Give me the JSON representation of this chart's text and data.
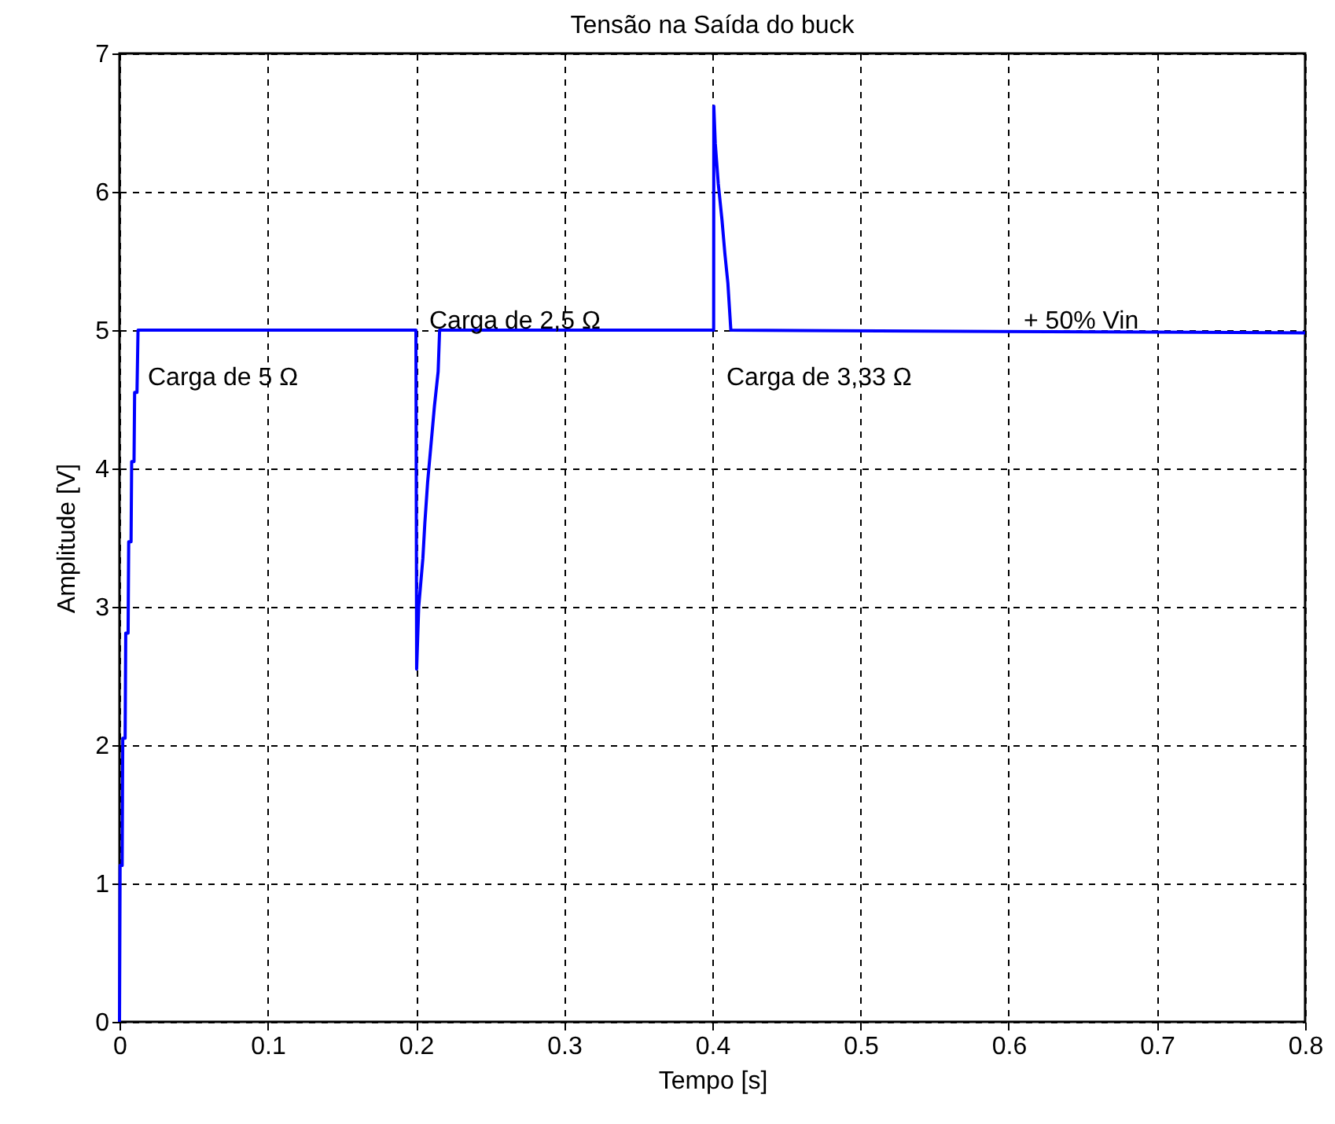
{
  "chart_data": {
    "type": "line",
    "title": "Tensão na Saída do buck",
    "xlabel": "Tempo [s]",
    "ylabel": "Amplitude [V]",
    "x": [
      0,
      0.0004,
      0.0018,
      0.0022,
      0.0038,
      0.0042,
      0.0058,
      0.0062,
      0.0078,
      0.0082,
      0.0098,
      0.0102,
      0.0118,
      0.0125,
      0.2,
      0.2005,
      0.2019,
      0.2047,
      0.206,
      0.2079,
      0.21,
      0.2125,
      0.215,
      0.216,
      0.4009,
      0.401,
      0.402,
      0.404,
      0.4065,
      0.4085,
      0.4105,
      0.4125,
      0.8
    ],
    "series": [
      {
        "color": "#0000ff",
        "values": [
          0,
          1.13,
          1.13,
          2.05,
          2.05,
          2.81,
          2.81,
          3.47,
          3.47,
          4.05,
          4.05,
          4.55,
          4.55,
          5.0,
          5.0,
          2.55,
          3.0,
          3.35,
          3.6,
          3.9,
          4.15,
          4.45,
          4.7,
          5.0,
          5.0,
          6.62,
          6.35,
          6.06,
          5.8,
          5.55,
          5.34,
          5.0,
          4.98
        ]
      }
    ],
    "xlim": [
      0,
      0.8
    ],
    "xticks": [
      0,
      0.1,
      0.2,
      0.3,
      0.4,
      0.5,
      0.6,
      0.7,
      0.8
    ],
    "ylim": [
      0,
      7
    ],
    "yticks": [
      0,
      1,
      2,
      3,
      4,
      5,
      6,
      7
    ],
    "grid": true,
    "annotations": [
      "Carga de 5 Ω",
      "Carga de 2,5 Ω",
      "Carga de 3,33 Ω",
      "+ 50% Vin"
    ]
  }
}
